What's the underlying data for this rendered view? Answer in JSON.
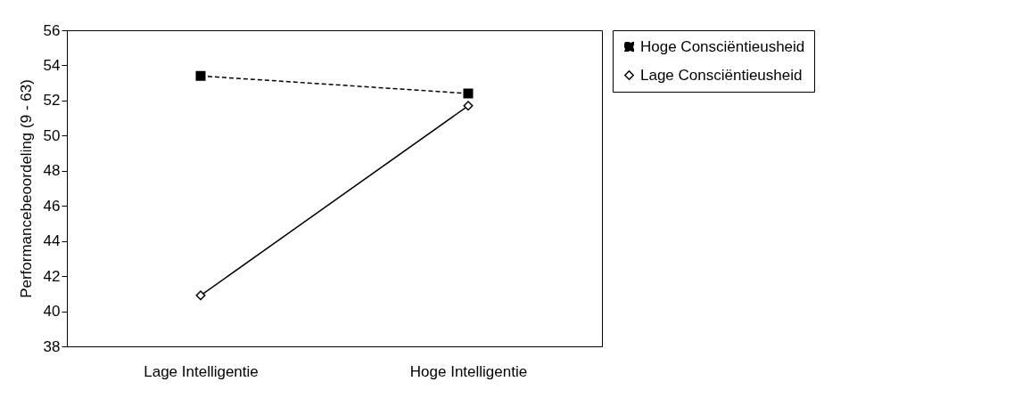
{
  "chart_data": {
    "type": "line",
    "ylabel": "Performancebeoordeling (9 - 63)",
    "categories": [
      "Lage Intelligentie",
      "Hoge Intelligentie"
    ],
    "series": [
      {
        "name": "Hoge Consciëntieusheid",
        "color": "#000000",
        "values": [
          53.4,
          52.4
        ],
        "marker": "square",
        "line_style": "dashed"
      },
      {
        "name": "Lage Consciëntieusheid",
        "color": "#000000",
        "values": [
          40.9,
          51.7
        ],
        "marker": "diamond",
        "line_style": "solid"
      }
    ],
    "ylim": [
      38,
      56
    ],
    "yticks": [
      38,
      40,
      42,
      44,
      46,
      48,
      50,
      52,
      54,
      56
    ],
    "grid": false,
    "legend": "right"
  }
}
